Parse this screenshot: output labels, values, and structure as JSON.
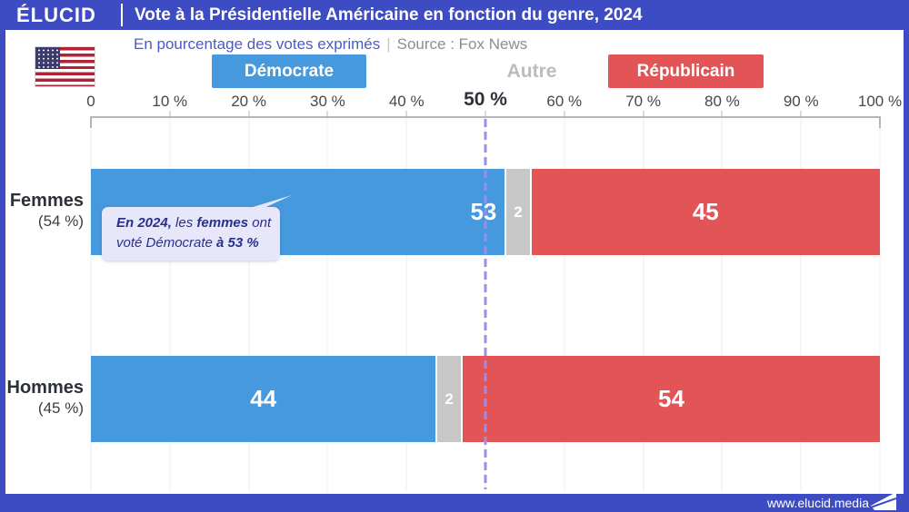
{
  "page": {
    "frame_color": "#3d4cc3",
    "background": "#ffffff"
  },
  "header": {
    "logo": "ÉLUCID",
    "title": "Vote à la Présidentielle Américaine en fonction du genre, 2024"
  },
  "subtitle": {
    "metric": "En pourcentage des votes exprimés",
    "divider": "|",
    "source": "Source : Fox News"
  },
  "legend": {
    "democrate": "Démocrate",
    "autre": "Autre",
    "republicain": "Républicain"
  },
  "chart_data": {
    "type": "bar",
    "orientation": "horizontal",
    "stacked": true,
    "title": "Vote à la Présidentielle Américaine en fonction du genre, 2024",
    "xlabel": "En pourcentage des votes exprimés",
    "source": "Fox News",
    "x_range": [
      0,
      100
    ],
    "grid": true,
    "x_ticks": [
      {
        "value": 0,
        "label": "0"
      },
      {
        "value": 10,
        "label": "10 %"
      },
      {
        "value": 20,
        "label": "20 %"
      },
      {
        "value": 30,
        "label": "30 %"
      },
      {
        "value": 40,
        "label": "40 %"
      },
      {
        "value": 50,
        "label": "50 %",
        "emphasis": true
      },
      {
        "value": 60,
        "label": "60 %"
      },
      {
        "value": 70,
        "label": "70 %"
      },
      {
        "value": 80,
        "label": "80 %"
      },
      {
        "value": 90,
        "label": "90 %"
      },
      {
        "value": 100,
        "label": "100 %"
      }
    ],
    "series": [
      "Démocrate",
      "Autre",
      "Républicain"
    ],
    "colors": {
      "democrate": "#4799dd",
      "autre": "#c7c7c7",
      "republicain": "#e25456",
      "reference_line": "#9b8cf0"
    },
    "reference_line": {
      "value": 50
    },
    "rows": [
      {
        "label": "Femmes",
        "sublabel": "(54 %)",
        "democrate": 53,
        "autre": 2,
        "republicain": 45
      },
      {
        "label": "Hommes",
        "sublabel": "(45 %)",
        "democrate": 44,
        "autre": 2,
        "republicain": 54
      }
    ]
  },
  "annotation": {
    "lines": [
      [
        {
          "t": "En 2024,",
          "b": true
        },
        {
          "t": " les ",
          "b": false
        },
        {
          "t": "femmes",
          "b": true
        },
        {
          "t": " ont",
          "b": false
        }
      ],
      [
        {
          "t": "voté Démocrate ",
          "b": false
        },
        {
          "t": "à 53 %",
          "b": true
        }
      ]
    ]
  },
  "footer": {
    "url": "www.elucid.media"
  }
}
